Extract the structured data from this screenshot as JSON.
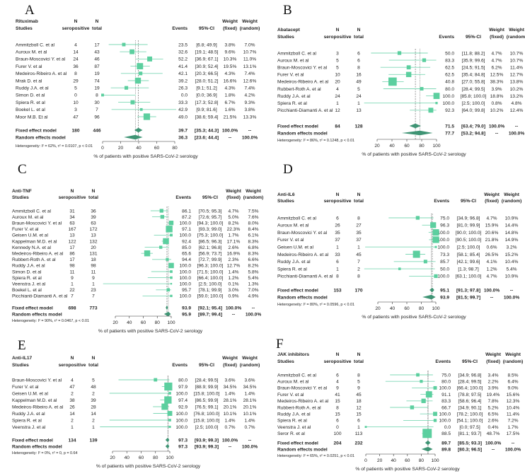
{
  "figure": {
    "studies_label": "Studies",
    "headers": {
      "n": "N",
      "seropositive": "seropositive",
      "total": "total",
      "events": "Events",
      "ci": "95%-CI",
      "weight": "Weight",
      "fixed": "(fixed)",
      "random": "(random)"
    },
    "fixed_label": "Fixed effect model",
    "random_label": "Random effects model",
    "xlabel": "% of patients with positive SARS-CoV-2 serology",
    "colors": {
      "square": "#5ccf9f",
      "ci_line": "#7fd8b6",
      "diamond": "#3f9474",
      "ref_line": "#555555"
    }
  },
  "chart_data": [
    {
      "type": "forest",
      "letter": "A",
      "title": "Rituximab",
      "xlim": [
        0,
        80
      ],
      "ticks": [
        0,
        20,
        40,
        60,
        80
      ],
      "studies": [
        {
          "name": "Ammitzboll C. et al",
          "n_pos": 4,
          "n_total": 17,
          "events": "23.5",
          "ci": "[6.8; 49.9]",
          "w_fixed": "3.8%",
          "w_random": "7.0%"
        },
        {
          "name": "Auroux M. et al",
          "n_pos": 14,
          "n_total": 43,
          "events": "32.6",
          "ci": "[19.1; 48.5]",
          "w_fixed": "9.6%",
          "w_random": "10.7%"
        },
        {
          "name": "Braun-Moscovici Y. et al",
          "n_pos": 24,
          "n_total": 46,
          "events": "52.2",
          "ci": "[36.9; 67.1]",
          "w_fixed": "10.3%",
          "w_random": "11.0%"
        },
        {
          "name": "Furer V. et al",
          "n_pos": 36,
          "n_total": 87,
          "events": "41.4",
          "ci": "[30.9; 52.4]",
          "w_fixed": "19.5%",
          "w_random": "13.1%"
        },
        {
          "name": "Medeiros-Ribeiro A. et al",
          "n_pos": 8,
          "n_total": 19,
          "events": "42.1",
          "ci": "[20.3; 66.5]",
          "w_fixed": "4.3%",
          "w_random": "7.4%"
        },
        {
          "name": "Mrak D. et al",
          "n_pos": 29,
          "n_total": 74,
          "events": "39.2",
          "ci": "[28.0; 51.2]",
          "w_fixed": "16.6%",
          "w_random": "12.6%"
        },
        {
          "name": "Ruddy J.A. et al",
          "n_pos": 5,
          "n_total": 19,
          "events": "26.3",
          "ci": "[9.1; 51.2]",
          "w_fixed": "4.3%",
          "w_random": "7.4%"
        },
        {
          "name": "Simon D. et al",
          "n_pos": 0,
          "n_total": 8,
          "events": "0.0",
          "ci": "[0.0; 36.9]",
          "w_fixed": "1.8%",
          "w_random": "4.2%"
        },
        {
          "name": "Spiera R. et al",
          "n_pos": 10,
          "n_total": 30,
          "events": "33.3",
          "ci": "[17.3; 52.8]",
          "w_fixed": "6.7%",
          "w_random": "9.3%"
        },
        {
          "name": "Boekel L. et al",
          "n_pos": 3,
          "n_total": 7,
          "events": "42.9",
          "ci": "[9.9; 81.6]",
          "w_fixed": "1.6%",
          "w_random": "3.8%"
        },
        {
          "name": "Moor M.B. Et al",
          "n_pos": 47,
          "n_total": 96,
          "events": "49.0",
          "ci": "[38.6; 59.4]",
          "w_fixed": "21.5%",
          "w_random": "13.3%"
        }
      ],
      "fixed": {
        "n_pos": 180,
        "n_total": 446,
        "events": "39.7",
        "ci": "[35.3; 44.3]",
        "w_fixed": "100.0%",
        "w_random": "--"
      },
      "random": {
        "events": "36.3",
        "ci": "[23.6; 44.4]",
        "w_fixed": "--",
        "w_random": "100.0%"
      },
      "heterogeneity": "Heterogeneity: I² = 62%, τ² = 0.0107, p < 0.01"
    },
    {
      "type": "forest",
      "letter": "B",
      "title": "Abatacept",
      "xlim": [
        20,
        100
      ],
      "ticks": [
        20,
        40,
        60,
        80,
        100
      ],
      "studies": [
        {
          "name": "Ammitzboll C. et al",
          "n_pos": 3,
          "n_total": 6,
          "events": "50.0",
          "ci": "[11.8; 88.2]",
          "w_fixed": "4.7%",
          "w_random": "10.7%"
        },
        {
          "name": "Auroux M. et al",
          "n_pos": 5,
          "n_total": 6,
          "events": "83.3",
          "ci": "[35.9; 99.6]",
          "w_fixed": "4.7%",
          "w_random": "10.7%"
        },
        {
          "name": "Braun-Moscovici Y. et al",
          "n_pos": 5,
          "n_total": 8,
          "events": "62.5",
          "ci": "[24.5; 91.5]",
          "w_fixed": "6.2%",
          "w_random": "11.4%"
        },
        {
          "name": "Furer V. et al",
          "n_pos": 10,
          "n_total": 16,
          "events": "62.5",
          "ci": "[35.4; 84.8]",
          "w_fixed": "12.5%",
          "w_random": "12.7%"
        },
        {
          "name": "Medeiros-Ribeiro A. et al",
          "n_pos": 20,
          "n_total": 49,
          "events": "40.8",
          "ci": "[27.0; 55.8]",
          "w_fixed": "38.3%",
          "w_random": "13.8%"
        },
        {
          "name": "Rubbert-Roth A. et al",
          "n_pos": 4,
          "n_total": 5,
          "events": "80.0",
          "ci": "[28.4; 99.5]",
          "w_fixed": "3.9%",
          "w_random": "10.2%"
        },
        {
          "name": "Ruddy J.A. et al",
          "n_pos": 24,
          "n_total": 24,
          "events": "100.0",
          "ci": "[85.8; 100.0]",
          "w_fixed": "18.8%",
          "w_random": "13.2%"
        },
        {
          "name": "Spiera R. et al",
          "n_pos": 1,
          "n_total": 1,
          "events": "100.0",
          "ci": "[2.5; 100.0]",
          "w_fixed": "0.8%",
          "w_random": "4.8%"
        },
        {
          "name": "Picchianti-Diamanti A. et al",
          "n_pos": 12,
          "n_total": 13,
          "events": "92.3",
          "ci": "[64.0; 99.8]",
          "w_fixed": "10.2%",
          "w_random": "12.4%"
        }
      ],
      "fixed": {
        "n_pos": 84,
        "n_total": 128,
        "events": "71.5",
        "ci": "[63.4; 79.0]",
        "w_fixed": "100.0%",
        "w_random": "--"
      },
      "random": {
        "events": "77.7",
        "ci": "[53.2; 94.8]",
        "w_fixed": "--",
        "w_random": "100.0%"
      },
      "heterogeneity": "Heterogeneity: I² = 86%, τ² = 0.1248, p < 0.01"
    },
    {
      "type": "forest",
      "letter": "C",
      "title": "Anti-TNF",
      "xlim": [
        20,
        100
      ],
      "ticks": [
        20,
        40,
        60,
        80,
        100
      ],
      "studies": [
        {
          "name": "Ammitzboll C. et al",
          "n_pos": 31,
          "n_total": 36,
          "events": "86.1",
          "ci": "[70.5; 95.3]",
          "w_fixed": "4.7%",
          "w_random": "7.5%"
        },
        {
          "name": "Auroux M. et al",
          "n_pos": 34,
          "n_total": 39,
          "events": "87.2",
          "ci": "[72.6; 95.7]",
          "w_fixed": "5.0%",
          "w_random": "7.6%"
        },
        {
          "name": "Braun-Moscovici Y. et al",
          "n_pos": 63,
          "n_total": 63,
          "events": "100.0",
          "ci": "[94.3; 100.0]",
          "w_fixed": "8.2%",
          "w_random": "8.0%"
        },
        {
          "name": "Furer V. et al",
          "n_pos": 167,
          "n_total": 172,
          "events": "97.1",
          "ci": "[93.3; 99.0]",
          "w_fixed": "22.3%",
          "w_random": "8.4%"
        },
        {
          "name": "Geisen U.M. et al",
          "n_pos": 13,
          "n_total": 13,
          "events": "100.0",
          "ci": "[75.3; 100.0]",
          "w_fixed": "1.7%",
          "w_random": "6.1%"
        },
        {
          "name": "Kappelman M.D. et al",
          "n_pos": 122,
          "n_total": 132,
          "events": "92.4",
          "ci": "[86.5; 96.3]",
          "w_fixed": "17.1%",
          "w_random": "8.3%"
        },
        {
          "name": "Kennedy N.A. et al",
          "n_pos": 17,
          "n_total": 20,
          "events": "85.0",
          "ci": "[62.1; 96.8]",
          "w_fixed": "2.6%",
          "w_random": "6.8%"
        },
        {
          "name": "Medeiros-Ribeiro A. et al",
          "n_pos": 86,
          "n_total": 131,
          "events": "65.6",
          "ci": "[56.9; 73.7]",
          "w_fixed": "16.9%",
          "w_random": "8.3%"
        },
        {
          "name": "Rubbert-Roth A. et al",
          "n_pos": 17,
          "n_total": 18,
          "events": "94.4",
          "ci": "[72.7; 99.9]",
          "w_fixed": "2.3%",
          "w_random": "6.6%"
        },
        {
          "name": "Ruddy J.A. et al",
          "n_pos": 98,
          "n_total": 98,
          "events": "100.0",
          "ci": "[96.3; 100.0]",
          "w_fixed": "12.7%",
          "w_random": "8.2%"
        },
        {
          "name": "Simon D. et al",
          "n_pos": 11,
          "n_total": 11,
          "events": "100.0",
          "ci": "[71.5; 100.0]",
          "w_fixed": "1.4%",
          "w_random": "5.8%"
        },
        {
          "name": "Spiera R. et al",
          "n_pos": 9,
          "n_total": 9,
          "events": "100.0",
          "ci": "[66.4; 100.0]",
          "w_fixed": "1.2%",
          "w_random": "5.4%"
        },
        {
          "name": "Veenstra J. et al",
          "n_pos": 1,
          "n_total": 1,
          "events": "100.0",
          "ci": "[2.5; 100.0]",
          "w_fixed": "0.1%",
          "w_random": "1.3%"
        },
        {
          "name": "Boekel L. et al",
          "n_pos": 22,
          "n_total": 23,
          "events": "95.7",
          "ci": "[78.1; 99.9]",
          "w_fixed": "3.0%",
          "w_random": "7.0%"
        },
        {
          "name": "Picchianti-Diamanti A. et al",
          "n_pos": 7,
          "n_total": 7,
          "events": "100.0",
          "ci": "[59.0; 100.0]",
          "w_fixed": "0.9%",
          "w_random": "4.9%"
        }
      ],
      "fixed": {
        "n_pos": 698,
        "n_total": 773,
        "events": "93.9",
        "ci": "[92.1; 95.4]",
        "w_fixed": "100.0%",
        "w_random": "--"
      },
      "random": {
        "events": "95.9",
        "ci": "[89.7; 99.4]",
        "w_fixed": "--",
        "w_random": "100.0%"
      },
      "heterogeneity": "Heterogeneity: I² = 90%, τ² = 0.0467, p < 0.01"
    },
    {
      "type": "forest",
      "letter": "D",
      "title": "Anti-IL6",
      "xlim": [
        20,
        100
      ],
      "ticks": [
        20,
        40,
        60,
        80,
        100
      ],
      "studies": [
        {
          "name": "Ammitzboll C. et al",
          "n_pos": 6,
          "n_total": 8,
          "events": "75.0",
          "ci": "[34.9; 96.8]",
          "w_fixed": "4.7%",
          "w_random": "10.9%"
        },
        {
          "name": "Auroux M. et al",
          "n_pos": 26,
          "n_total": 27,
          "events": "96.3",
          "ci": "[81.0; 99.9]",
          "w_fixed": "15.9%",
          "w_random": "14.4%"
        },
        {
          "name": "Braun-Moscovici Y. et al",
          "n_pos": 35,
          "n_total": 35,
          "events": "100.0",
          "ci": "[90.0; 100.0]",
          "w_fixed": "20.6%",
          "w_random": "14.8%"
        },
        {
          "name": "Furer V. et al",
          "n_pos": 37,
          "n_total": 37,
          "events": "100.0",
          "ci": "[90.5; 100.0]",
          "w_fixed": "21.8%",
          "w_random": "14.9%"
        },
        {
          "name": "Geisen U.M. et al",
          "n_pos": 1,
          "n_total": 1,
          "events": "100.0",
          "ci": "[2.5; 100.0]",
          "w_fixed": "0.6%",
          "w_random": "3.2%"
        },
        {
          "name": "Medeiros-Ribeiro A. et al",
          "n_pos": 33,
          "n_total": 45,
          "events": "73.3",
          "ci": "[58.1; 85.4]",
          "w_fixed": "26.5%",
          "w_random": "15.2%"
        },
        {
          "name": "Ruddy J.A. et al",
          "n_pos": 6,
          "n_total": 7,
          "events": "85.7",
          "ci": "[42.1; 99.6]",
          "w_fixed": "4.1%",
          "w_random": "10.4%"
        },
        {
          "name": "Spiera R. et al",
          "n_pos": 1,
          "n_total": 2,
          "events": "50.0",
          "ci": "[1.3; 98.7]",
          "w_fixed": "1.2%",
          "w_random": "5.4%"
        },
        {
          "name": "Picchianti-Diamanti A. et al",
          "n_pos": 8,
          "n_total": 8,
          "events": "100.0",
          "ci": "[63.1; 100.0]",
          "w_fixed": "4.7%",
          "w_random": "10.9%"
        }
      ],
      "fixed": {
        "n_pos": 153,
        "n_total": 170,
        "events": "95.1",
        "ci": "[91.3; 97.8]",
        "w_fixed": "100.0%",
        "w_random": "--"
      },
      "random": {
        "events": "93.9",
        "ci": "[81.5; 99.7]",
        "w_fixed": "--",
        "w_random": "100.0%"
      },
      "heterogeneity": "Heterogeneity: I² = 80%, τ² = 0.0596, p < 0.01"
    },
    {
      "type": "forest",
      "letter": "E",
      "title": "Anti-IL17",
      "xlim": [
        20,
        100
      ],
      "ticks": [
        20,
        40,
        60,
        80,
        100
      ],
      "studies": [
        {
          "name": "Braun-Moscovici Y. et al",
          "n_pos": 4,
          "n_total": 5,
          "events": "80.0",
          "ci": "[28.4; 99.5]",
          "w_fixed": "3.6%",
          "w_random": "3.6%"
        },
        {
          "name": "Furer V. et al",
          "n_pos": 47,
          "n_total": 48,
          "events": "97.9",
          "ci": "[88.9; 99.9]",
          "w_fixed": "34.5%",
          "w_random": "34.5%"
        },
        {
          "name": "Geisen U.M. et al",
          "n_pos": 2,
          "n_total": 2,
          "events": "100.0",
          "ci": "[15.8; 100.0]",
          "w_fixed": "1.4%",
          "w_random": "1.4%"
        },
        {
          "name": "Kappelman M.D. et al",
          "n_pos": 38,
          "n_total": 39,
          "events": "97.4",
          "ci": "[86.5; 99.9]",
          "w_fixed": "28.1%",
          "w_random": "28.1%"
        },
        {
          "name": "Medeiros-Ribeiro A. et al",
          "n_pos": 26,
          "n_total": 28,
          "events": "92.9",
          "ci": "[76.5; 99.1]",
          "w_fixed": "20.1%",
          "w_random": "20.1%"
        },
        {
          "name": "Ruddy J.A. et al",
          "n_pos": 14,
          "n_total": 14,
          "events": "100.0",
          "ci": "[76.8; 100.0]",
          "w_fixed": "10.1%",
          "w_random": "10.1%"
        },
        {
          "name": "Spiera R. et al",
          "n_pos": 2,
          "n_total": 2,
          "events": "100.0",
          "ci": "[15.8; 100.0]",
          "w_fixed": "1.4%",
          "w_random": "1.4%"
        },
        {
          "name": "Veenstra J. et al",
          "n_pos": 1,
          "n_total": 1,
          "events": "100.0",
          "ci": "[2.5; 100.0]",
          "w_fixed": "0.7%",
          "w_random": "0.7%"
        }
      ],
      "fixed": {
        "n_pos": 134,
        "n_total": 139,
        "events": "97.3",
        "ci": "[93.9; 99.3]",
        "w_fixed": "100.0%",
        "w_random": "--"
      },
      "random": {
        "events": "97.3",
        "ci": "[93.9; 99.3]",
        "w_fixed": "--",
        "w_random": "100.0%"
      },
      "heterogeneity": "Heterogeneity: I² = 0%, τ² = 0, p = 0.64"
    },
    {
      "type": "forest",
      "letter": "F",
      "title": "JAK inhibitors",
      "xlim": [
        0,
        100
      ],
      "ticks": [
        0,
        20,
        40,
        60,
        80,
        100
      ],
      "studies": [
        {
          "name": "Ammitzboll C. et al",
          "n_pos": 6,
          "n_total": 8,
          "events": "75.0",
          "ci": "[34.9; 96.8]",
          "w_fixed": "3.4%",
          "w_random": "8.5%"
        },
        {
          "name": "Auroux M. et al",
          "n_pos": 4,
          "n_total": 5,
          "events": "80.0",
          "ci": "[28.4; 99.5]",
          "w_fixed": "2.2%",
          "w_random": "6.4%"
        },
        {
          "name": "Braun-Moscovici Y. et al",
          "n_pos": 9,
          "n_total": 9,
          "events": "100.0",
          "ci": "[66.4; 100.0]",
          "w_fixed": "3.9%",
          "w_random": "9.0%"
        },
        {
          "name": "Furer V. et al",
          "n_pos": 41,
          "n_total": 45,
          "events": "91.1",
          "ci": "[78.8; 97.5]",
          "w_fixed": "19.4%",
          "w_random": "15.6%"
        },
        {
          "name": "Medeiros-Ribeiro A. et al",
          "n_pos": 15,
          "n_total": 18,
          "events": "83.3",
          "ci": "[58.6; 96.4]",
          "w_fixed": "7.8%",
          "w_random": "12.3%"
        },
        {
          "name": "Rubbert-Roth A. et al",
          "n_pos": 8,
          "n_total": 12,
          "events": "66.7",
          "ci": "[34.9; 90.1]",
          "w_fixed": "5.2%",
          "w_random": "10.4%"
        },
        {
          "name": "Ruddy J.A. et al",
          "n_pos": 15,
          "n_total": 15,
          "events": "100.0",
          "ci": "[78.2; 100.0]",
          "w_fixed": "6.5%",
          "w_random": "11.4%"
        },
        {
          "name": "Spiera R. et al",
          "n_pos": 6,
          "n_total": 6,
          "events": "100.0",
          "ci": "[54.1; 100.0]",
          "w_fixed": "2.6%",
          "w_random": "7.2%"
        },
        {
          "name": "Veenstra J. et al",
          "n_pos": 0,
          "n_total": 1,
          "events": "0.0",
          "ci": "[0.0; 97.5]",
          "w_fixed": "0.4%",
          "w_random": "1.7%"
        },
        {
          "name": "Seror R. et al",
          "n_pos": 100,
          "n_total": 113,
          "events": "88.5",
          "ci": "[81.1; 93.7]",
          "w_fixed": "48.7%",
          "w_random": "17.5%"
        }
      ],
      "fixed": {
        "n_pos": 204,
        "n_total": 232,
        "events": "89.7",
        "ci": "[85.5; 93.3]",
        "w_fixed": "100.0%",
        "w_random": "--"
      },
      "random": {
        "events": "89.8",
        "ci": "[80.3; 96.5]",
        "w_fixed": "--",
        "w_random": "100.0%"
      },
      "heterogeneity": "Heterogeneity: I² = 65%, τ² = 0.0251, p < 0.01"
    }
  ]
}
